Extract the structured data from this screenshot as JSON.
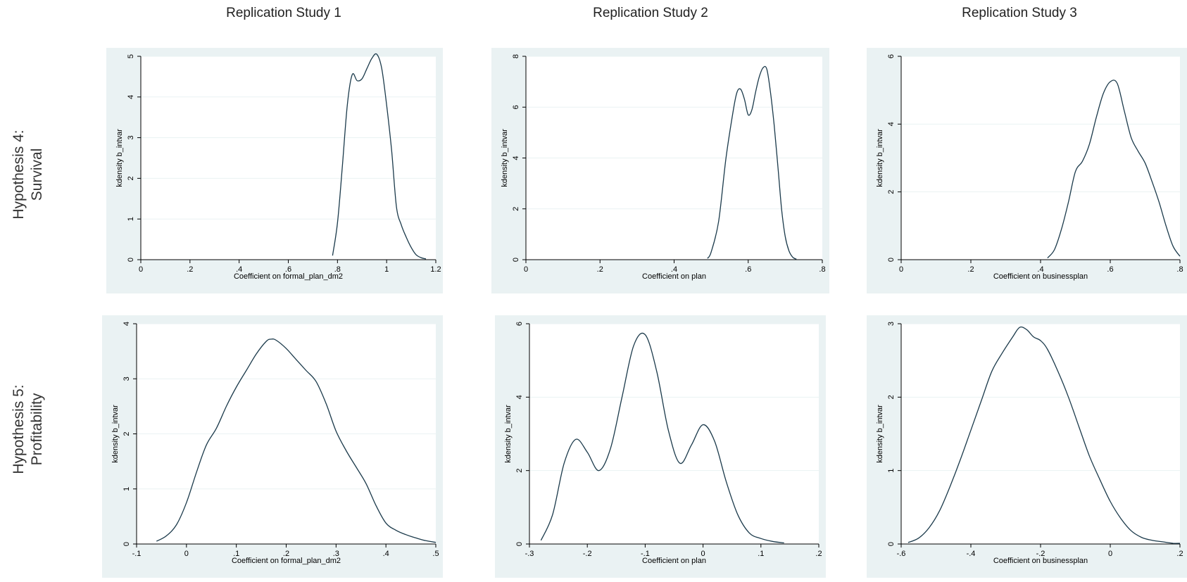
{
  "columns": [
    "Replication Study 1",
    "Replication Study 2",
    "Replication Study 3"
  ],
  "rows": [
    {
      "line1": "Hypothesis 4:",
      "line2": "Survival"
    },
    {
      "line1": "Hypothesis 5:",
      "line2": "Profitability"
    }
  ],
  "chart_data": [
    {
      "type": "line",
      "xlabel": "Coefficient on formal_plan_dm2",
      "ylabel": "kdensity b_intvar",
      "xlim": [
        0,
        1.2
      ],
      "ylim": [
        0,
        5
      ],
      "xticks": [
        0,
        0.2,
        0.4,
        0.6,
        0.8,
        1,
        1.2
      ],
      "xticklabels": [
        "0",
        ".2",
        ".4",
        ".6",
        ".8",
        "1",
        "1.2"
      ],
      "yticks": [
        0,
        1,
        2,
        3,
        4,
        5
      ],
      "yticklabels": [
        "0",
        "1",
        "2",
        "3",
        "4",
        "5"
      ],
      "x": [
        0.78,
        0.8,
        0.82,
        0.84,
        0.86,
        0.88,
        0.9,
        0.92,
        0.94,
        0.96,
        0.98,
        1.0,
        1.02,
        1.04,
        1.06,
        1.08,
        1.1,
        1.12,
        1.14,
        1.16
      ],
      "y": [
        0.1,
        0.9,
        2.3,
        3.8,
        4.55,
        4.4,
        4.45,
        4.7,
        4.95,
        5.05,
        4.7,
        3.8,
        2.7,
        1.3,
        0.85,
        0.55,
        0.3,
        0.12,
        0.05,
        0.02
      ]
    },
    {
      "type": "line",
      "xlabel": "Coefficient on plan",
      "ylabel": "kdensity b_intvar",
      "xlim": [
        0,
        0.8
      ],
      "ylim": [
        0,
        8
      ],
      "xticks": [
        0,
        0.2,
        0.4,
        0.6,
        0.8
      ],
      "xticklabels": [
        "0",
        ".2",
        ".4",
        ".6",
        ".8"
      ],
      "yticks": [
        0,
        2,
        4,
        6,
        8
      ],
      "yticklabels": [
        "0",
        "2",
        "4",
        "6",
        "8"
      ],
      "x": [
        0.49,
        0.5,
        0.52,
        0.54,
        0.56,
        0.57,
        0.58,
        0.59,
        0.6,
        0.61,
        0.62,
        0.63,
        0.64,
        0.65,
        0.66,
        0.67,
        0.68,
        0.69,
        0.7,
        0.71,
        0.72,
        0.73
      ],
      "y": [
        0.05,
        0.3,
        1.5,
        4.0,
        5.9,
        6.6,
        6.7,
        6.3,
        5.7,
        5.9,
        6.6,
        7.2,
        7.55,
        7.5,
        6.6,
        5.3,
        3.7,
        2.0,
        0.9,
        0.35,
        0.1,
        0.02
      ]
    },
    {
      "type": "line",
      "xlabel": "Coefficient on businessplan",
      "ylabel": "kdensity b_intvar",
      "xlim": [
        0,
        0.8
      ],
      "ylim": [
        0,
        6
      ],
      "xticks": [
        0,
        0.2,
        0.4,
        0.6,
        0.8
      ],
      "xticklabels": [
        "0",
        ".2",
        ".4",
        ".6",
        ".8"
      ],
      "yticks": [
        0,
        2,
        4,
        6
      ],
      "yticklabels": [
        "0",
        "2",
        "4",
        "6"
      ],
      "x": [
        0.42,
        0.44,
        0.46,
        0.48,
        0.5,
        0.52,
        0.54,
        0.56,
        0.58,
        0.6,
        0.62,
        0.64,
        0.66,
        0.68,
        0.7,
        0.72,
        0.74,
        0.76,
        0.78,
        0.8
      ],
      "y": [
        0.05,
        0.3,
        0.9,
        1.7,
        2.6,
        2.9,
        3.4,
        4.2,
        4.9,
        5.25,
        5.2,
        4.4,
        3.6,
        3.2,
        2.85,
        2.3,
        1.7,
        1.0,
        0.4,
        0.1
      ]
    },
    {
      "type": "line",
      "xlabel": "Coefficient on formal_plan_dm2",
      "ylabel": "kdensity b_intvar",
      "xlim": [
        -0.1,
        0.5
      ],
      "ylim": [
        0,
        4
      ],
      "xticks": [
        -0.1,
        0,
        0.1,
        0.2,
        0.3,
        0.4,
        0.5
      ],
      "xticklabels": [
        "-.1",
        "0",
        ".1",
        ".2",
        ".3",
        ".4",
        ".5"
      ],
      "yticks": [
        0,
        1,
        2,
        3,
        4
      ],
      "yticklabels": [
        "0",
        "1",
        "2",
        "3",
        "4"
      ],
      "x": [
        -0.06,
        -0.04,
        -0.02,
        0.0,
        0.02,
        0.04,
        0.06,
        0.08,
        0.1,
        0.12,
        0.14,
        0.16,
        0.17,
        0.18,
        0.2,
        0.22,
        0.24,
        0.26,
        0.28,
        0.3,
        0.32,
        0.34,
        0.36,
        0.38,
        0.4,
        0.42,
        0.44,
        0.46,
        0.48,
        0.5
      ],
      "y": [
        0.05,
        0.15,
        0.35,
        0.75,
        1.3,
        1.8,
        2.1,
        2.5,
        2.85,
        3.15,
        3.45,
        3.68,
        3.72,
        3.7,
        3.55,
        3.35,
        3.15,
        2.95,
        2.55,
        2.05,
        1.7,
        1.4,
        1.1,
        0.7,
        0.38,
        0.25,
        0.17,
        0.11,
        0.06,
        0.03
      ]
    },
    {
      "type": "line",
      "xlabel": "Coefficient on plan",
      "ylabel": "kdensity b_intvar",
      "xlim": [
        -0.3,
        0.2
      ],
      "ylim": [
        0,
        6
      ],
      "xticks": [
        -0.3,
        -0.2,
        -0.1,
        0,
        0.1,
        0.2
      ],
      "xticklabels": [
        "-.3",
        "-.2",
        "-.1",
        "0",
        ".1",
        ".2"
      ],
      "yticks": [
        0,
        2,
        4,
        6
      ],
      "yticklabels": [
        "0",
        "2",
        "4",
        "6"
      ],
      "x": [
        -0.28,
        -0.26,
        -0.24,
        -0.22,
        -0.2,
        -0.18,
        -0.16,
        -0.14,
        -0.12,
        -0.1,
        -0.08,
        -0.06,
        -0.04,
        -0.02,
        0.0,
        0.02,
        0.04,
        0.06,
        0.08,
        0.1,
        0.12,
        0.14
      ],
      "y": [
        0.1,
        0.8,
        2.2,
        2.85,
        2.5,
        2.0,
        2.6,
        4.0,
        5.4,
        5.7,
        4.7,
        3.1,
        2.2,
        2.7,
        3.25,
        2.8,
        1.7,
        0.8,
        0.3,
        0.15,
        0.07,
        0.03
      ]
    },
    {
      "type": "line",
      "xlabel": "Coefficient on businessplan",
      "ylabel": "kdensity b_intvar",
      "xlim": [
        -0.6,
        0.2
      ],
      "ylim": [
        0,
        3
      ],
      "xticks": [
        -0.6,
        -0.4,
        -0.2,
        0,
        0.2
      ],
      "xticklabels": [
        "-.6",
        "-.4",
        "-.2",
        "0",
        ".2"
      ],
      "yticks": [
        0,
        1,
        2,
        3
      ],
      "yticklabels": [
        "0",
        "1",
        "2",
        "3"
      ],
      "x": [
        -0.58,
        -0.55,
        -0.52,
        -0.49,
        -0.46,
        -0.43,
        -0.4,
        -0.37,
        -0.34,
        -0.31,
        -0.28,
        -0.26,
        -0.24,
        -0.22,
        -0.2,
        -0.18,
        -0.15,
        -0.12,
        -0.09,
        -0.06,
        -0.03,
        0.0,
        0.03,
        0.06,
        0.09,
        0.12,
        0.15,
        0.18,
        0.2
      ],
      "y": [
        0.02,
        0.08,
        0.22,
        0.45,
        0.78,
        1.15,
        1.55,
        1.95,
        2.35,
        2.6,
        2.82,
        2.95,
        2.92,
        2.82,
        2.77,
        2.65,
        2.35,
        2.0,
        1.6,
        1.2,
        0.88,
        0.58,
        0.35,
        0.18,
        0.09,
        0.05,
        0.03,
        0.01,
        0.01
      ]
    }
  ]
}
